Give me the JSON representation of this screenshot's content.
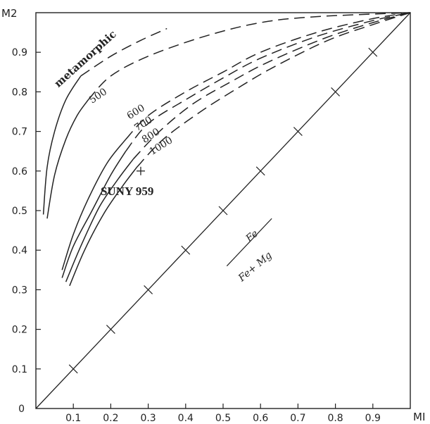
{
  "chart_data": {
    "type": "line",
    "xlabel": "MI",
    "ylabel": "M2",
    "xlim": [
      0,
      1
    ],
    "ylim": [
      0,
      1
    ],
    "origin_label": "0",
    "x_tick_labels": [
      "0.1",
      "0.2",
      "0.3",
      "0.4",
      "0.5",
      "0.6",
      "0.7",
      "0.8",
      "0.9"
    ],
    "x_tick_values": [
      0.1,
      0.2,
      0.3,
      0.4,
      0.5,
      0.6,
      0.7,
      0.8,
      0.9
    ],
    "y_tick_labels": [
      "0.1",
      "0.2",
      "0.3",
      "0.4",
      "0.5",
      "0.6",
      "0.7",
      "0.8",
      "0.9"
    ],
    "y_tick_values": [
      0.1,
      0.2,
      0.3,
      0.4,
      0.5,
      0.6,
      0.7,
      0.8,
      0.9
    ],
    "series": [
      {
        "name": "metamorphic",
        "solid": [
          [
            0.02,
            0.49
          ],
          [
            0.03,
            0.61
          ],
          [
            0.05,
            0.7
          ],
          [
            0.08,
            0.78
          ],
          [
            0.12,
            0.84
          ]
        ],
        "dashed": [
          [
            0.12,
            0.84
          ],
          [
            0.2,
            0.89
          ],
          [
            0.28,
            0.93
          ],
          [
            0.35,
            0.96
          ]
        ]
      },
      {
        "name": "500",
        "solid": [
          [
            0.03,
            0.48
          ],
          [
            0.05,
            0.59
          ],
          [
            0.08,
            0.68
          ],
          [
            0.11,
            0.74
          ],
          [
            0.14,
            0.78
          ]
        ],
        "dashed": [
          [
            0.14,
            0.78
          ],
          [
            0.2,
            0.84
          ],
          [
            0.3,
            0.89
          ],
          [
            0.45,
            0.94
          ],
          [
            0.6,
            0.975
          ],
          [
            0.75,
            0.99
          ],
          [
            1.0,
            1.0
          ]
        ]
      },
      {
        "name": "600",
        "solid": [
          [
            0.07,
            0.35
          ],
          [
            0.1,
            0.44
          ],
          [
            0.14,
            0.53
          ],
          [
            0.19,
            0.62
          ],
          [
            0.24,
            0.68
          ]
        ],
        "dashed": [
          [
            0.24,
            0.68
          ],
          [
            0.3,
            0.74
          ],
          [
            0.4,
            0.8
          ],
          [
            0.5,
            0.85
          ],
          [
            0.6,
            0.9
          ],
          [
            0.75,
            0.95
          ],
          [
            0.9,
            0.985
          ],
          [
            1.0,
            1.0
          ]
        ]
      },
      {
        "name": "700",
        "solid": [
          [
            0.07,
            0.33
          ],
          [
            0.1,
            0.41
          ],
          [
            0.15,
            0.5
          ],
          [
            0.2,
            0.59
          ],
          [
            0.24,
            0.65
          ]
        ],
        "dashed": [
          [
            0.24,
            0.65
          ],
          [
            0.3,
            0.72
          ],
          [
            0.4,
            0.78
          ],
          [
            0.5,
            0.835
          ],
          [
            0.6,
            0.885
          ],
          [
            0.75,
            0.94
          ],
          [
            0.9,
            0.98
          ],
          [
            1.0,
            1.0
          ]
        ]
      },
      {
        "name": "800",
        "solid": [
          [
            0.08,
            0.32
          ],
          [
            0.12,
            0.41
          ],
          [
            0.17,
            0.51
          ],
          [
            0.22,
            0.58
          ],
          [
            0.26,
            0.63
          ]
        ],
        "dashed": [
          [
            0.26,
            0.63
          ],
          [
            0.33,
            0.7
          ],
          [
            0.42,
            0.77
          ],
          [
            0.52,
            0.825
          ],
          [
            0.62,
            0.875
          ],
          [
            0.77,
            0.935
          ],
          [
            0.9,
            0.975
          ],
          [
            1.0,
            1.0
          ]
        ]
      },
      {
        "name": "1000",
        "solid": [
          [
            0.09,
            0.31
          ],
          [
            0.13,
            0.4
          ],
          [
            0.18,
            0.49
          ],
          [
            0.23,
            0.56
          ],
          [
            0.27,
            0.61
          ]
        ],
        "dashed": [
          [
            0.27,
            0.61
          ],
          [
            0.34,
            0.68
          ],
          [
            0.44,
            0.75
          ],
          [
            0.54,
            0.81
          ],
          [
            0.64,
            0.865
          ],
          [
            0.78,
            0.93
          ],
          [
            0.9,
            0.97
          ],
          [
            1.0,
            1.0
          ]
        ]
      }
    ],
    "reference_line": {
      "x": [
        0,
        1
      ],
      "y": [
        0,
        1
      ]
    },
    "point": {
      "label": "SUNY 959",
      "x": 0.28,
      "y": 0.6,
      "marker": "+"
    },
    "annotation_fraction": {
      "numerator": "Fe",
      "denominator": "Fe+ Mg"
    },
    "grid": false
  }
}
